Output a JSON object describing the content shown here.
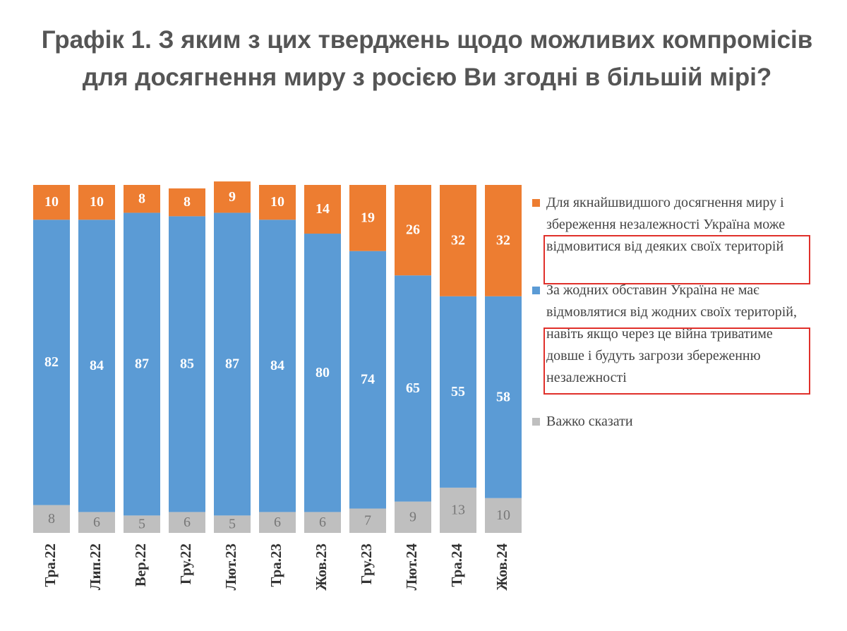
{
  "chart_data": {
    "type": "stacked-bar",
    "title": "Графік 1. З яким з цих тверджень щодо можливих компромісів для досягнення миру з росією Ви згодні в більшій мірі?",
    "categories": [
      "Тра.22",
      "Лип.22",
      "Вер.22",
      "Гру.22",
      "Лют.23",
      "Тра.23",
      "Жов.23",
      "Гру.23",
      "Лют.24",
      "Тра.24",
      "Жов.24"
    ],
    "series": [
      {
        "name": "Для якнайшвидшого досягнення миру і збереження незалежності Україна може відмовитися від деяких своїх територій",
        "color": "#ed7d31",
        "values": [
          10,
          10,
          8,
          8,
          9,
          10,
          14,
          19,
          26,
          32,
          32
        ]
      },
      {
        "name": "За жодних обставин Україна не має відмовлятися від жодних своїх територій, навіть якщо через це війна триватиме довше і будуть загрози збереженню незалежності",
        "color": "#5b9bd5",
        "values": [
          82,
          84,
          87,
          85,
          87,
          84,
          80,
          74,
          65,
          55,
          58
        ]
      },
      {
        "name": "Важко сказати",
        "color": "#bfbfbf",
        "values": [
          8,
          6,
          5,
          6,
          5,
          6,
          6,
          7,
          9,
          13,
          10
        ]
      }
    ],
    "ylim": [
      0,
      100
    ]
  }
}
